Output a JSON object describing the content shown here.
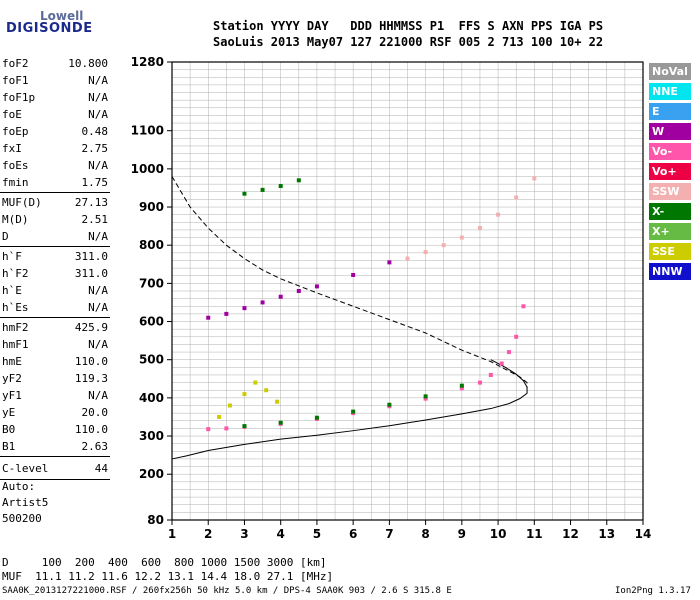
{
  "logo": {
    "line1": "Lowell",
    "line2": "DIGISONDE"
  },
  "header": {
    "labels": "Station YYYY DAY   DDD HHMMSS P1  FFS S AXN PPS IGA PS",
    "values": "SaoLuis 2013 May07 127 221000 RSF 005 2 713 100 10+ 22"
  },
  "params_group1": [
    {
      "name": "foF2",
      "value": "10.800"
    },
    {
      "name": "foF1",
      "value": "N/A"
    },
    {
      "name": "foF1p",
      "value": "N/A"
    },
    {
      "name": "foE",
      "value": "N/A"
    },
    {
      "name": "foEp",
      "value": "0.48"
    },
    {
      "name": "fxI",
      "value": "2.75"
    },
    {
      "name": "foEs",
      "value": "N/A"
    },
    {
      "name": "fmin",
      "value": "1.75"
    }
  ],
  "params_group2": [
    {
      "name": "MUF(D)",
      "value": "27.13"
    },
    {
      "name": "M(D)",
      "value": "2.51"
    },
    {
      "name": "D",
      "value": "N/A"
    }
  ],
  "params_group3": [
    {
      "name": "h`F",
      "value": "311.0"
    },
    {
      "name": "h`F2",
      "value": "311.0"
    },
    {
      "name": "h`E",
      "value": "N/A"
    },
    {
      "name": "h`Es",
      "value": "N/A"
    }
  ],
  "params_group4": [
    {
      "name": "hmF2",
      "value": "425.9"
    },
    {
      "name": "hmF1",
      "value": "N/A"
    },
    {
      "name": "hmE",
      "value": "110.0"
    },
    {
      "name": "yF2",
      "value": "119.3"
    },
    {
      "name": "yF1",
      "value": "N/A"
    },
    {
      "name": "yE",
      "value": "20.0"
    },
    {
      "name": "B0",
      "value": "110.0"
    },
    {
      "name": "B1",
      "value": "2.63"
    }
  ],
  "clevel": {
    "name": "C-level",
    "value": "44"
  },
  "auto": {
    "line1": "Auto:",
    "line2": "Artist5",
    "line3": "500200"
  },
  "legend": [
    {
      "label": "NoVal",
      "color": "#999999"
    },
    {
      "label": "NNE",
      "color": "#00e5ee"
    },
    {
      "label": "E",
      "color": "#3aa0f0"
    },
    {
      "label": "W",
      "color": "#a000a0"
    },
    {
      "label": "Vo-",
      "color": "#ff55aa"
    },
    {
      "label": "Vo+",
      "color": "#ee0044"
    },
    {
      "label": "SSW",
      "color": "#f4b0b0"
    },
    {
      "label": "X-",
      "color": "#007700"
    },
    {
      "label": "X+",
      "color": "#66bb44"
    },
    {
      "label": "SSE",
      "color": "#cccc00"
    },
    {
      "label": "NNW",
      "color": "#1010cc"
    }
  ],
  "bottom": {
    "d_row": "D     100  200  400  600  800 1000 1500 3000 [km]",
    "muf_row": "MUF  11.1 11.2 11.6 12.2 13.1 14.4 18.0 27.1 [MHz]"
  },
  "footer": {
    "left": "SAA0K_2013127221000.RSF / 260fx256h 50 kHz 5.0 km / DPS-4 SAA0K 903 / 2.6 S 315.8 E",
    "right": "Ion2Png 1.3.17"
  },
  "chart_data": {
    "type": "scatter",
    "x_range": [
      1,
      14
    ],
    "y_range": [
      80,
      1280
    ],
    "x_ticks": [
      1,
      2,
      3,
      4,
      5,
      6,
      7,
      8,
      9,
      10,
      11,
      12,
      13,
      14
    ],
    "y_ticks": [
      80,
      200,
      300,
      400,
      500,
      600,
      700,
      800,
      900,
      1000,
      1100,
      1280
    ],
    "grid": true,
    "legend_position": "right",
    "traces": [
      {
        "style": "solid",
        "x": [
          1.0,
          1.4,
          2.0,
          3.0,
          4.0,
          5.0,
          6.0,
          7.0,
          8.0,
          9.0,
          9.8,
          10.3,
          10.6,
          10.8,
          10.8,
          10.7,
          10.5,
          10.2,
          9.8
        ],
        "y": [
          240,
          248,
          262,
          278,
          292,
          302,
          314,
          327,
          342,
          358,
          372,
          385,
          398,
          412,
          428,
          445,
          462,
          480,
          500
        ]
      },
      {
        "style": "dashed",
        "x": [
          1.0,
          1.5,
          2.0,
          2.5,
          3.0,
          3.5,
          4.0,
          5.0,
          6.0,
          7.0,
          8.0,
          9.0,
          9.8,
          10.3,
          10.6,
          10.8,
          10.8
        ],
        "y": [
          980,
          900,
          845,
          800,
          765,
          735,
          712,
          675,
          640,
          605,
          570,
          525,
          495,
          470,
          455,
          440,
          425
        ]
      }
    ],
    "echoes": [
      {
        "name": "F-trace O",
        "color": "#ff55aa",
        "x": [
          2.0,
          2.5,
          3.0,
          4.0,
          5.0,
          6.0,
          7.0,
          8.0,
          9.0,
          9.5,
          9.8,
          10.1,
          10.3,
          10.5,
          10.7
        ],
        "y": [
          318,
          320,
          324,
          332,
          345,
          360,
          378,
          398,
          425,
          440,
          460,
          490,
          520,
          560,
          640
        ]
      },
      {
        "name": "F-trace X",
        "color": "#007700",
        "x": [
          3.0,
          4.0,
          5.0,
          6.0,
          7.0,
          8.0,
          9.0
        ],
        "y": [
          326,
          335,
          348,
          364,
          382,
          404,
          432
        ]
      },
      {
        "name": "F2 multihop",
        "color": "#a000a0",
        "x": [
          2.0,
          2.5,
          3.0,
          3.5,
          4.0,
          4.5,
          5.0,
          6.0,
          7.0
        ],
        "y": [
          610,
          620,
          635,
          650,
          665,
          680,
          692,
          722,
          755
        ]
      },
      {
        "name": "oblique SSW",
        "color": "#f4b0b0",
        "x": [
          7.5,
          8.0,
          8.5,
          9.0,
          9.5,
          10.0,
          10.5,
          11.0
        ],
        "y": [
          765,
          782,
          800,
          820,
          845,
          880,
          925,
          975
        ]
      },
      {
        "name": "third hop",
        "color": "#007700",
        "x": [
          3.0,
          3.5,
          4.0,
          4.5
        ],
        "y": [
          935,
          945,
          955,
          970
        ]
      },
      {
        "name": "SSE cluster",
        "color": "#cccc00",
        "x": [
          2.3,
          2.6,
          3.0,
          3.3,
          3.6,
          3.9
        ],
        "y": [
          350,
          380,
          410,
          440,
          420,
          390
        ]
      }
    ]
  }
}
